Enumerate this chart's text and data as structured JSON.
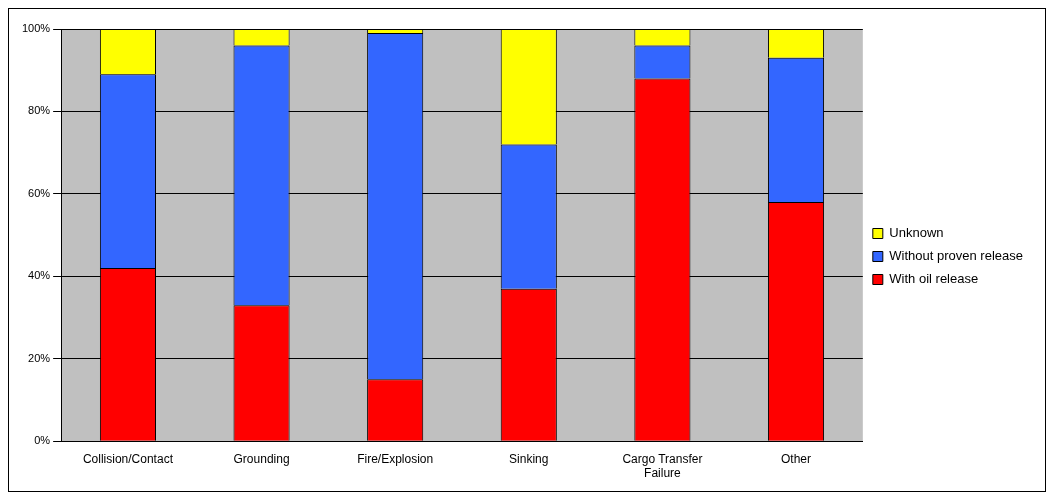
{
  "chart_data": {
    "type": "bar",
    "stacked": true,
    "categories": [
      "Collision/Contact",
      "Grounding",
      "Fire/Explosion",
      "Sinking",
      "Cargo Transfer Failure",
      "Other"
    ],
    "series": [
      {
        "name": "With oil release",
        "color": "#ff0000",
        "values": [
          42,
          33,
          15,
          37,
          88,
          58
        ]
      },
      {
        "name": "Without proven release",
        "color": "#3366ff",
        "values": [
          47,
          63,
          84,
          35,
          8,
          35
        ]
      },
      {
        "name": "Unknown",
        "color": "#ffff00",
        "values": [
          11,
          4,
          1,
          28,
          4,
          7
        ]
      }
    ],
    "ylim": [
      0,
      100
    ],
    "yticks": [
      {
        "value": 0,
        "label": "0%"
      },
      {
        "value": 20,
        "label": "20%"
      },
      {
        "value": 40,
        "label": "40%"
      },
      {
        "value": 60,
        "label": "60%"
      },
      {
        "value": 80,
        "label": "80%"
      },
      {
        "value": 100,
        "label": "100%"
      }
    ],
    "grid": "y",
    "legend": "right"
  }
}
